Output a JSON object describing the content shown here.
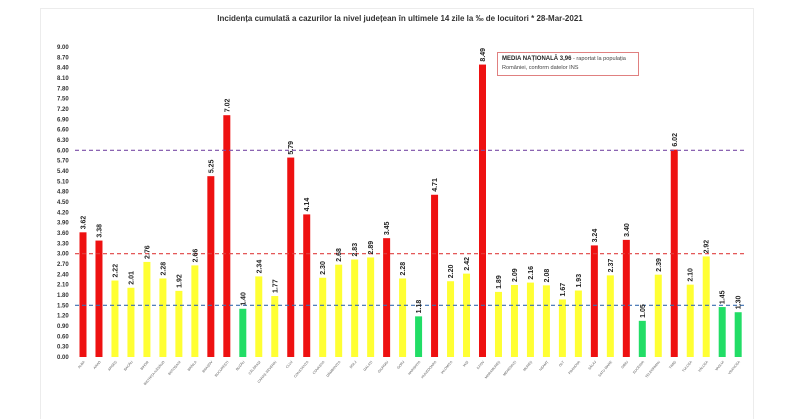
{
  "chart_data": {
    "type": "bar",
    "title": "Incidența cumulată a cazurilor la nivel județean în ultimele 14 zile la ‰ de locuitori * 28-Mar-2021",
    "xlabel": "",
    "ylabel": "",
    "ylim": [
      0,
      9
    ],
    "yticks": [
      "0.00",
      "0.30",
      "0.60",
      "0.90",
      "1.20",
      "1.50",
      "1.80",
      "2.10",
      "2.40",
      "2.70",
      "3.00",
      "3.30",
      "3.60",
      "3.90",
      "4.20",
      "4.50",
      "4.80",
      "5.10",
      "5.40",
      "5.70",
      "6.00",
      "6.30",
      "6.60",
      "6.90",
      "7.20",
      "7.50",
      "7.80",
      "8.10",
      "8.40",
      "8.70",
      "9.00"
    ],
    "grid": false,
    "reference_lines": [
      {
        "value": 6.0,
        "style": "dashed",
        "color": "#7b4fa8"
      },
      {
        "value": 3.0,
        "style": "dashed",
        "color": "#e04040"
      },
      {
        "value": 1.5,
        "style": "dashed",
        "color": "#3a6fb0"
      }
    ],
    "categories": [
      "Alba",
      "Arad",
      "Argeș",
      "Bacău",
      "Bihor",
      "Bistrița-Năsăud",
      "Botoșani",
      "Brăila",
      "Brașov",
      "București",
      "Buzău",
      "Călărași",
      "Caraș-Severin",
      "Cluj",
      "Constanța",
      "Covasna",
      "Dâmbovița",
      "Dolj",
      "Galați",
      "Giurgiu",
      "Gorj",
      "Harghita",
      "Hunedoara",
      "Ialomița",
      "Iași",
      "Ilfov",
      "Maramureș",
      "Mehedinți",
      "Mureș",
      "Neamț",
      "Olt",
      "Prahova",
      "Sălaj",
      "Satu Mare",
      "Sibiu",
      "Suceava",
      "Teleorman",
      "Timiș",
      "Tulcea",
      "Vâlcea",
      "Vaslui",
      "Vrancea"
    ],
    "values": [
      3.62,
      3.38,
      2.22,
      2.01,
      2.76,
      2.28,
      1.92,
      2.66,
      5.25,
      7.02,
      1.4,
      2.34,
      1.77,
      5.79,
      4.14,
      2.3,
      2.68,
      2.83,
      2.89,
      3.45,
      2.28,
      1.18,
      4.71,
      2.2,
      2.42,
      8.49,
      1.89,
      2.09,
      2.16,
      2.08,
      1.67,
      1.93,
      3.24,
      2.37,
      3.4,
      1.05,
      2.39,
      6.02,
      2.1,
      2.92,
      1.45,
      1.3
    ],
    "value_labels": [
      "3.62",
      "3.38",
      "2.22",
      "2.01",
      "2.76",
      "2.28",
      "1.92",
      "2.66",
      "5.25",
      "7.02",
      "1.40",
      "2.34",
      "1.77",
      "5.79",
      "4.14",
      "2.30",
      "2.68",
      "2.83",
      "2.89",
      "3.45",
      "2.28",
      "1.18",
      "4.71",
      "2.20",
      "2.42",
      "8.49",
      "1.89",
      "2.09",
      "2.16",
      "2.08",
      "1.67",
      "1.93",
      "3.24",
      "2.37",
      "3.40",
      "1.05",
      "2.39",
      "6.02",
      "2.10",
      "2.92",
      "1.45",
      "1.30"
    ],
    "color_rule": {
      "green_below": 1.5,
      "yellow_between": [
        1.5,
        3.0
      ],
      "red_above": 3.0
    },
    "colors": {
      "red": "#ee1111",
      "yellow": "#ffff33",
      "green": "#22dd66"
    },
    "annotation": {
      "bold_text": "MEDIA NAȚIONALĂ  3,96",
      "text": " - raportat la populația României, conform datelor INS"
    }
  }
}
